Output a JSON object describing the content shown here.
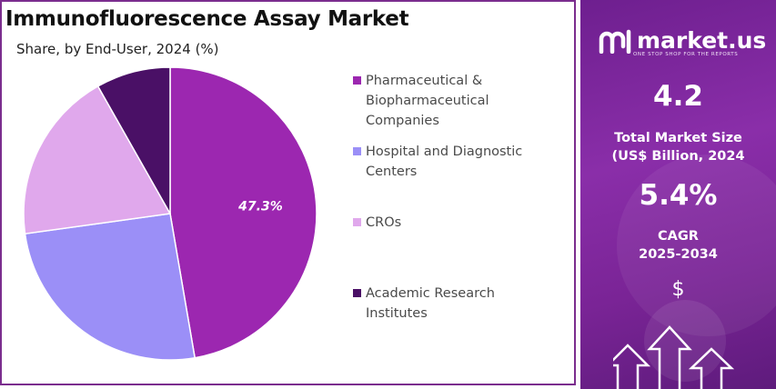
{
  "title": "Immunofluorescence Assay Market",
  "subtitle": "Share, by End-User, 2024 (%)",
  "chart_data": {
    "type": "pie",
    "title": "Immunofluorescence Assay Market",
    "subtitle": "Share, by End-User, 2024 (%)",
    "start_angle_deg": 0,
    "direction": "clockwise",
    "legend_position": "right",
    "slices": [
      {
        "label": "Pharmaceutical & Biopharmaceutical Companies",
        "value": 47.3,
        "color": "#9c27b0",
        "data_label": "47.3%"
      },
      {
        "label": "Hospital and Diagnostic Centers",
        "value": 25.5,
        "color": "#9b8ff7",
        "data_label": ""
      },
      {
        "label": "CROs",
        "value": 19.0,
        "color": "#e0a8ec",
        "data_label": ""
      },
      {
        "label": "Academic Research Institutes",
        "value": 8.2,
        "color": "#4a1066",
        "data_label": ""
      }
    ]
  },
  "sidebar": {
    "brand": "market.us",
    "tagline": "ONE STOP SHOP FOR THE REPORTS",
    "market_size_value": "4.2",
    "market_size_label_1": "Total Market Size",
    "market_size_label_2": "(US$ Billion, 2024",
    "cagr_value": "5.4%",
    "cagr_label_1": "CAGR",
    "cagr_label_2": "2025-2034",
    "currency_symbol": "$"
  }
}
